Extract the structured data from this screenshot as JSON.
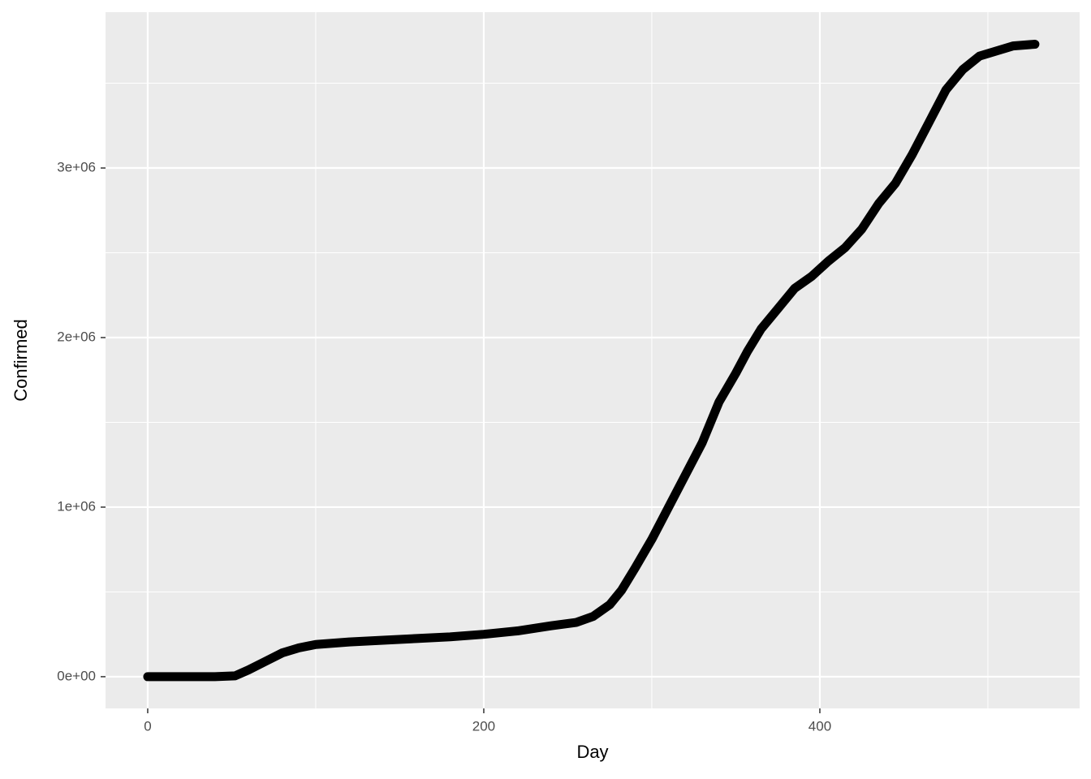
{
  "chart_data": {
    "type": "line",
    "x_label": "Day",
    "y_label": "Confirmed",
    "x": [
      0,
      40,
      52,
      60,
      70,
      80,
      90,
      100,
      120,
      140,
      160,
      180,
      200,
      220,
      240,
      255,
      265,
      275,
      282,
      290,
      300,
      310,
      320,
      330,
      340,
      350,
      357,
      365,
      375,
      385,
      395,
      405,
      415,
      425,
      435,
      445,
      455,
      465,
      475,
      485,
      495,
      505,
      515,
      528
    ],
    "series": [
      {
        "color": "#000000",
        "values": [
          0,
          0,
          5000,
          40000,
          90000,
          140000,
          170000,
          190000,
          205000,
          215000,
          225000,
          235000,
          250000,
          270000,
          300000,
          320000,
          355000,
          425000,
          510000,
          640000,
          810000,
          1000000,
          1190000,
          1380000,
          1620000,
          1790000,
          1920000,
          2050000,
          2170000,
          2290000,
          2360000,
          2450000,
          2530000,
          2640000,
          2790000,
          2910000,
          3080000,
          3270000,
          3460000,
          3580000,
          3660000,
          3690000,
          3720000,
          3730000
        ]
      }
    ],
    "xlim": [
      -25.1,
      554.6
    ],
    "ylim": [
      -187000,
      3919000
    ],
    "xticks": [
      0,
      200,
      400
    ],
    "yticks": [
      {
        "value": 0,
        "label": "0e+00"
      },
      {
        "value": 1000000,
        "label": "1e+06"
      },
      {
        "value": 2000000,
        "label": "2e+06"
      },
      {
        "value": 3000000,
        "label": "3e+06"
      }
    ],
    "x_minor_grid": [
      100,
      300,
      500
    ],
    "y_minor_grid": [
      500000,
      1500000,
      2500000,
      3500000
    ],
    "grid": true
  }
}
